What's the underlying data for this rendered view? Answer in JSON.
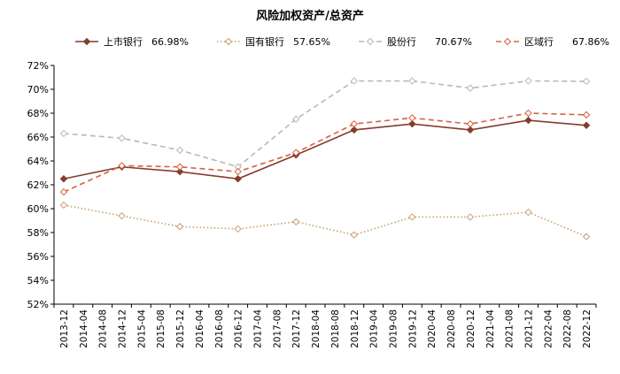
{
  "chart_data": {
    "type": "line",
    "title": "风险加权资产/总资产",
    "xlabel": "",
    "ylabel": "",
    "ylim": [
      52,
      72
    ],
    "yticks": [
      "52%",
      "54%",
      "56%",
      "58%",
      "60%",
      "62%",
      "64%",
      "66%",
      "68%",
      "70%",
      "72%"
    ],
    "grid": false,
    "legend_position": "top",
    "categories": [
      "2013-12",
      "2014-04",
      "2014-08",
      "2014-12",
      "2015-04",
      "2015-08",
      "2015-12",
      "2016-04",
      "2016-08",
      "2016-12",
      "2017-04",
      "2017-08",
      "2017-12",
      "2018-04",
      "2018-08",
      "2018-12",
      "2019-04",
      "2019-08",
      "2019-12",
      "2020-04",
      "2020-08",
      "2020-12",
      "2021-04",
      "2021-08",
      "2021-12",
      "2022-04",
      "2022-08",
      "2022-12"
    ],
    "series": [
      {
        "name": "上市银行",
        "legend_value": "66.98%",
        "color": "#843C2B",
        "style": "solid",
        "marker": "diamond-filled",
        "x": [
          "2013-12",
          "2014-12",
          "2015-12",
          "2016-12",
          "2017-12",
          "2018-12",
          "2019-12",
          "2020-12",
          "2021-12",
          "2022-12"
        ],
        "values": [
          62.5,
          63.5,
          63.1,
          62.5,
          64.5,
          66.6,
          67.1,
          66.6,
          67.4,
          66.98
        ]
      },
      {
        "name": "国有银行",
        "legend_value": "57.65%",
        "color": "#C8A070",
        "style": "dotted",
        "marker": "diamond-open",
        "x": [
          "2013-12",
          "2014-12",
          "2015-12",
          "2016-12",
          "2017-12",
          "2018-12",
          "2019-12",
          "2020-12",
          "2021-12",
          "2022-12"
        ],
        "values": [
          60.3,
          59.4,
          58.5,
          58.3,
          58.9,
          57.8,
          59.3,
          59.3,
          59.7,
          57.65
        ]
      },
      {
        "name": "股份行",
        "legend_value": "70.67%",
        "color": "#B8B8B8",
        "style": "dashed",
        "marker": "diamond-open",
        "x": [
          "2013-12",
          "2014-12",
          "2015-12",
          "2016-12",
          "2017-12",
          "2018-12",
          "2019-12",
          "2020-12",
          "2021-12",
          "2022-12"
        ],
        "values": [
          66.3,
          65.9,
          64.9,
          63.5,
          67.5,
          70.7,
          70.7,
          70.1,
          70.7,
          70.67
        ]
      },
      {
        "name": "区域行",
        "legend_value": "67.86%",
        "color": "#D9603F",
        "style": "dashed",
        "marker": "diamond-open",
        "x": [
          "2013-12",
          "2014-12",
          "2015-12",
          "2016-12",
          "2017-12",
          "2018-12",
          "2019-12",
          "2020-12",
          "2021-12",
          "2022-12"
        ],
        "values": [
          61.4,
          63.6,
          63.5,
          63.1,
          64.7,
          67.1,
          67.6,
          67.1,
          68.0,
          67.86
        ]
      }
    ]
  }
}
